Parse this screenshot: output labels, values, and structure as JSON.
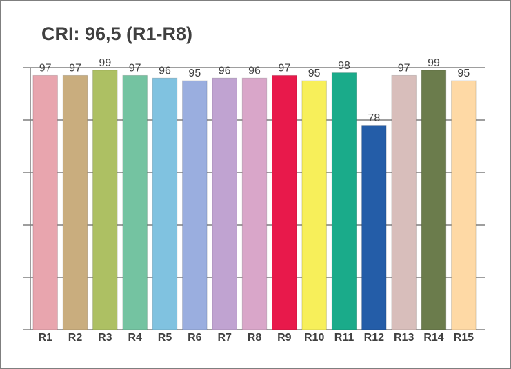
{
  "chart_data": {
    "type": "bar",
    "title": "CRI: 96,5 (R1-R8)",
    "categories": [
      "R1",
      "R2",
      "R3",
      "R4",
      "R5",
      "R6",
      "R7",
      "R8",
      "R9",
      "R10",
      "R11",
      "R12",
      "R13",
      "R14",
      "R15"
    ],
    "values": [
      97,
      97,
      99,
      97,
      96,
      95,
      96,
      96,
      97,
      95,
      98,
      78,
      97,
      99,
      95
    ],
    "colors": [
      "#e8a5ae",
      "#c9ad7e",
      "#adc063",
      "#74c3a1",
      "#80c2e0",
      "#9aaedf",
      "#c0a3d1",
      "#d9a6c9",
      "#e8194b",
      "#f7ef5a",
      "#1aab8a",
      "#245da8",
      "#d8bebb",
      "#6b7c4c",
      "#fed9a5"
    ],
    "ylim": [
      0,
      100
    ],
    "yticks": [
      0,
      20,
      40,
      60,
      80,
      100
    ],
    "grid": true
  }
}
